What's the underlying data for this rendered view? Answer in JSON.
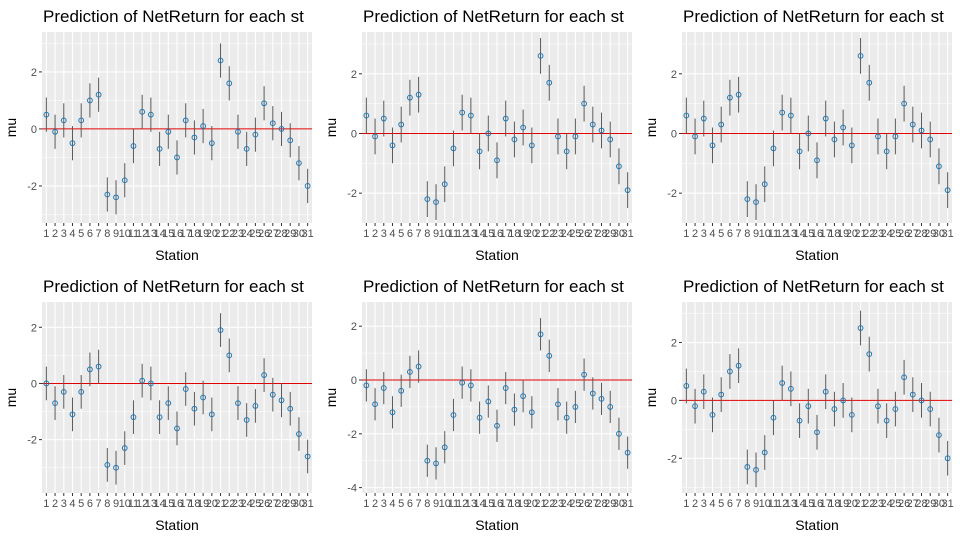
{
  "chart_data": [
    {
      "type": "scatter",
      "title": "Prediction of NetReturn for each st",
      "xlabel": "Station",
      "ylabel": "mu",
      "ylim": [
        -3.3,
        3.4
      ],
      "yticks": [
        -2,
        0,
        2
      ],
      "grid": true,
      "x": [
        1,
        2,
        3,
        4,
        5,
        6,
        7,
        8,
        9,
        10,
        11,
        12,
        13,
        14,
        15,
        16,
        17,
        18,
        19,
        20,
        21,
        22,
        23,
        24,
        25,
        26,
        27,
        28,
        29,
        30,
        31
      ],
      "x_tick_labels": [
        "1",
        "2",
        "3",
        "4",
        "5",
        "6",
        "7",
        "8",
        "9",
        "10",
        "11",
        "12",
        "13",
        "14",
        "15",
        "16",
        "17",
        "18",
        "19",
        "20",
        "21",
        "22",
        "23",
        "24",
        "25",
        "26",
        "27",
        "28",
        "29",
        "30",
        "31"
      ],
      "y": [
        0.5,
        -0.1,
        0.3,
        -0.5,
        0.3,
        1.0,
        1.2,
        -2.3,
        -2.4,
        -1.8,
        -0.6,
        0.6,
        0.5,
        -0.7,
        -0.1,
        -1.0,
        0.3,
        -0.3,
        0.1,
        -0.5,
        2.4,
        1.6,
        -0.1,
        -0.7,
        -0.2,
        0.9,
        0.2,
        0.0,
        -0.4,
        -1.2,
        -2.0
      ],
      "error_halfwidth": 0.6,
      "hline": 0,
      "colors": {
        "point": "#1f77b4",
        "errorbar": "#595959",
        "hline": "#e00000",
        "panel_bg": "#ebebeb",
        "grid": "#ffffff"
      }
    },
    {
      "type": "scatter",
      "title": "Prediction of NetReturn for each st",
      "xlabel": "Station",
      "ylabel": "mu",
      "ylim": [
        -3.0,
        3.4
      ],
      "yticks": [
        -2,
        0,
        2
      ],
      "grid": true,
      "x": [
        1,
        2,
        3,
        4,
        5,
        6,
        7,
        8,
        9,
        10,
        11,
        12,
        13,
        14,
        15,
        16,
        17,
        18,
        19,
        20,
        21,
        22,
        23,
        24,
        25,
        26,
        27,
        28,
        29,
        30,
        31
      ],
      "x_tick_labels": [
        "1",
        "2",
        "3",
        "4",
        "5",
        "6",
        "7",
        "8",
        "9",
        "10",
        "11",
        "12",
        "13",
        "14",
        "15",
        "16",
        "17",
        "18",
        "19",
        "20",
        "21",
        "22",
        "23",
        "24",
        "25",
        "26",
        "27",
        "28",
        "29",
        "30",
        "31"
      ],
      "y": [
        0.6,
        -0.1,
        0.5,
        -0.4,
        0.3,
        1.2,
        1.3,
        -2.2,
        -2.3,
        -1.7,
        -0.5,
        0.7,
        0.6,
        -0.6,
        0.0,
        -0.9,
        0.5,
        -0.2,
        0.2,
        -0.4,
        2.6,
        1.7,
        -0.1,
        -0.6,
        -0.1,
        1.0,
        0.3,
        0.1,
        -0.2,
        -1.1,
        -1.9
      ],
      "error_halfwidth": 0.6,
      "hline": 0,
      "colors": {
        "point": "#1f77b4",
        "errorbar": "#595959",
        "hline": "#e00000",
        "panel_bg": "#ebebeb",
        "grid": "#ffffff"
      }
    },
    {
      "type": "scatter",
      "title": "Prediction of NetReturn for each st",
      "xlabel": "Station",
      "ylabel": "mu",
      "ylim": [
        -3.0,
        3.4
      ],
      "yticks": [
        -2,
        0,
        2
      ],
      "grid": true,
      "x": [
        1,
        2,
        3,
        4,
        5,
        6,
        7,
        8,
        9,
        10,
        11,
        12,
        13,
        14,
        15,
        16,
        17,
        18,
        19,
        20,
        21,
        22,
        23,
        24,
        25,
        26,
        27,
        28,
        29,
        30,
        31
      ],
      "x_tick_labels": [
        "1",
        "2",
        "3",
        "4",
        "5",
        "6",
        "7",
        "8",
        "9",
        "10",
        "11",
        "12",
        "13",
        "14",
        "15",
        "16",
        "17",
        "18",
        "19",
        "20",
        "21",
        "22",
        "23",
        "24",
        "25",
        "26",
        "27",
        "28",
        "29",
        "30",
        "31"
      ],
      "y": [
        0.6,
        -0.1,
        0.5,
        -0.4,
        0.3,
        1.2,
        1.3,
        -2.2,
        -2.3,
        -1.7,
        -0.5,
        0.7,
        0.6,
        -0.6,
        0.0,
        -0.9,
        0.5,
        -0.2,
        0.2,
        -0.4,
        2.6,
        1.7,
        -0.1,
        -0.6,
        -0.1,
        1.0,
        0.3,
        0.1,
        -0.2,
        -1.1,
        -1.9
      ],
      "error_halfwidth": 0.6,
      "hline": 0,
      "colors": {
        "point": "#1f77b4",
        "errorbar": "#595959",
        "hline": "#e00000",
        "panel_bg": "#ebebeb",
        "grid": "#ffffff"
      }
    },
    {
      "type": "scatter",
      "title": "Prediction of NetReturn for each st",
      "xlabel": "Station",
      "ylabel": "mu",
      "ylim": [
        -3.9,
        2.9
      ],
      "yticks": [
        -2,
        0,
        2
      ],
      "grid": true,
      "x": [
        1,
        2,
        3,
        4,
        5,
        6,
        7,
        8,
        9,
        10,
        11,
        12,
        13,
        14,
        15,
        16,
        17,
        18,
        19,
        20,
        21,
        22,
        23,
        24,
        25,
        26,
        27,
        28,
        29,
        30,
        31
      ],
      "x_tick_labels": [
        "1",
        "2",
        "3",
        "4",
        "5",
        "6",
        "7",
        "8",
        "9",
        "10",
        "11",
        "12",
        "13",
        "14",
        "15",
        "16",
        "17",
        "18",
        "19",
        "20",
        "21",
        "22",
        "23",
        "24",
        "25",
        "26",
        "27",
        "28",
        "29",
        "30",
        "31"
      ],
      "y": [
        0.0,
        -0.7,
        -0.3,
        -1.1,
        -0.3,
        0.5,
        0.6,
        -2.9,
        -3.0,
        -2.3,
        -1.2,
        0.1,
        0.0,
        -1.2,
        -0.7,
        -1.6,
        -0.2,
        -0.9,
        -0.5,
        -1.1,
        1.9,
        1.0,
        -0.7,
        -1.3,
        -0.8,
        0.3,
        -0.4,
        -0.6,
        -0.9,
        -1.8,
        -2.6
      ],
      "error_halfwidth": 0.6,
      "hline": 0,
      "colors": {
        "point": "#1f77b4",
        "errorbar": "#595959",
        "hline": "#e00000",
        "panel_bg": "#ebebeb",
        "grid": "#ffffff"
      }
    },
    {
      "type": "scatter",
      "title": "Prediction of NetReturn for each st",
      "xlabel": "Station",
      "ylabel": "mu",
      "ylim": [
        -4.2,
        2.9
      ],
      "yticks": [
        -4,
        -2,
        0,
        2
      ],
      "grid": true,
      "x": [
        1,
        2,
        3,
        4,
        5,
        6,
        7,
        8,
        9,
        10,
        11,
        12,
        13,
        14,
        15,
        16,
        17,
        18,
        19,
        20,
        21,
        22,
        23,
        24,
        25,
        26,
        27,
        28,
        29,
        30,
        31
      ],
      "x_tick_labels": [
        "1",
        "2",
        "3",
        "4",
        "5",
        "6",
        "7",
        "8",
        "9",
        "10",
        "11",
        "12",
        "13",
        "14",
        "15",
        "16",
        "17",
        "18",
        "19",
        "20",
        "21",
        "22",
        "23",
        "24",
        "25",
        "26",
        "27",
        "28",
        "29",
        "30",
        "31"
      ],
      "y": [
        -0.2,
        -0.9,
        -0.3,
        -1.2,
        -0.4,
        0.3,
        0.5,
        -3.0,
        -3.1,
        -2.5,
        -1.3,
        -0.1,
        -0.2,
        -1.4,
        -0.8,
        -1.7,
        -0.3,
        -1.1,
        -0.6,
        -1.2,
        1.7,
        0.9,
        -0.9,
        -1.4,
        -1.0,
        0.2,
        -0.5,
        -0.7,
        -1.0,
        -2.0,
        -2.7
      ],
      "error_halfwidth": 0.6,
      "hline": 0,
      "colors": {
        "point": "#1f77b4",
        "errorbar": "#595959",
        "hline": "#e00000",
        "panel_bg": "#ebebeb",
        "grid": "#ffffff"
      }
    },
    {
      "type": "scatter",
      "title": "Prediction of NetReturn for each st",
      "xlabel": "Station",
      "ylabel": "mu",
      "ylim": [
        -3.2,
        3.4
      ],
      "yticks": [
        -2,
        0,
        2
      ],
      "grid": true,
      "x": [
        1,
        2,
        3,
        4,
        5,
        6,
        7,
        8,
        9,
        10,
        11,
        12,
        13,
        14,
        15,
        16,
        17,
        18,
        19,
        20,
        21,
        22,
        23,
        24,
        25,
        26,
        27,
        28,
        29,
        30,
        31
      ],
      "x_tick_labels": [
        "1",
        "2",
        "3",
        "4",
        "5",
        "6",
        "7",
        "8",
        "9",
        "10",
        "11",
        "12",
        "13",
        "14",
        "15",
        "16",
        "17",
        "18",
        "19",
        "20",
        "21",
        "22",
        "23",
        "24",
        "25",
        "26",
        "27",
        "28",
        "29",
        "30",
        "31"
      ],
      "y": [
        0.5,
        -0.2,
        0.3,
        -0.5,
        0.2,
        1.0,
        1.2,
        -2.3,
        -2.4,
        -1.8,
        -0.6,
        0.6,
        0.4,
        -0.7,
        -0.2,
        -1.1,
        0.3,
        -0.3,
        0.0,
        -0.5,
        2.5,
        1.6,
        -0.2,
        -0.7,
        -0.3,
        0.8,
        0.2,
        0.0,
        -0.3,
        -1.2,
        -2.0
      ],
      "error_halfwidth": 0.6,
      "hline": 0,
      "colors": {
        "point": "#1f77b4",
        "errorbar": "#595959",
        "hline": "#e00000",
        "panel_bg": "#ebebeb",
        "grid": "#ffffff"
      }
    }
  ]
}
